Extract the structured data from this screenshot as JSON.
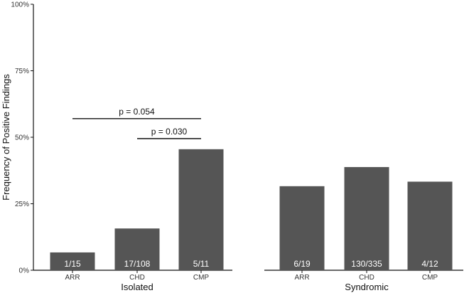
{
  "chart_data": {
    "type": "bar",
    "ylabel": "Frequency of Positive Findings",
    "ylim": [
      0,
      100
    ],
    "y_ticks": [
      "0%",
      "25%",
      "50%",
      "75%",
      "100%"
    ],
    "y_tick_values": [
      0,
      25,
      50,
      75,
      100
    ],
    "bar_color": "#555555",
    "panels": [
      {
        "name": "Isolated",
        "categories": [
          "ARR",
          "CHD",
          "CMP"
        ],
        "values": [
          6.7,
          15.7,
          45.5
        ],
        "bar_labels": [
          "1/15",
          "17/108",
          "5/11"
        ],
        "comparisons": [
          {
            "from": "ARR",
            "to": "CMP",
            "y": 57,
            "label": "p = 0.054"
          },
          {
            "from": "CHD",
            "to": "CMP",
            "y": 49.5,
            "label": "p = 0.030"
          }
        ]
      },
      {
        "name": "Syndromic",
        "categories": [
          "ARR",
          "CHD",
          "CMP"
        ],
        "values": [
          31.6,
          38.8,
          33.3
        ],
        "bar_labels": [
          "6/19",
          "130/335",
          "4/12"
        ],
        "comparisons": []
      }
    ]
  }
}
